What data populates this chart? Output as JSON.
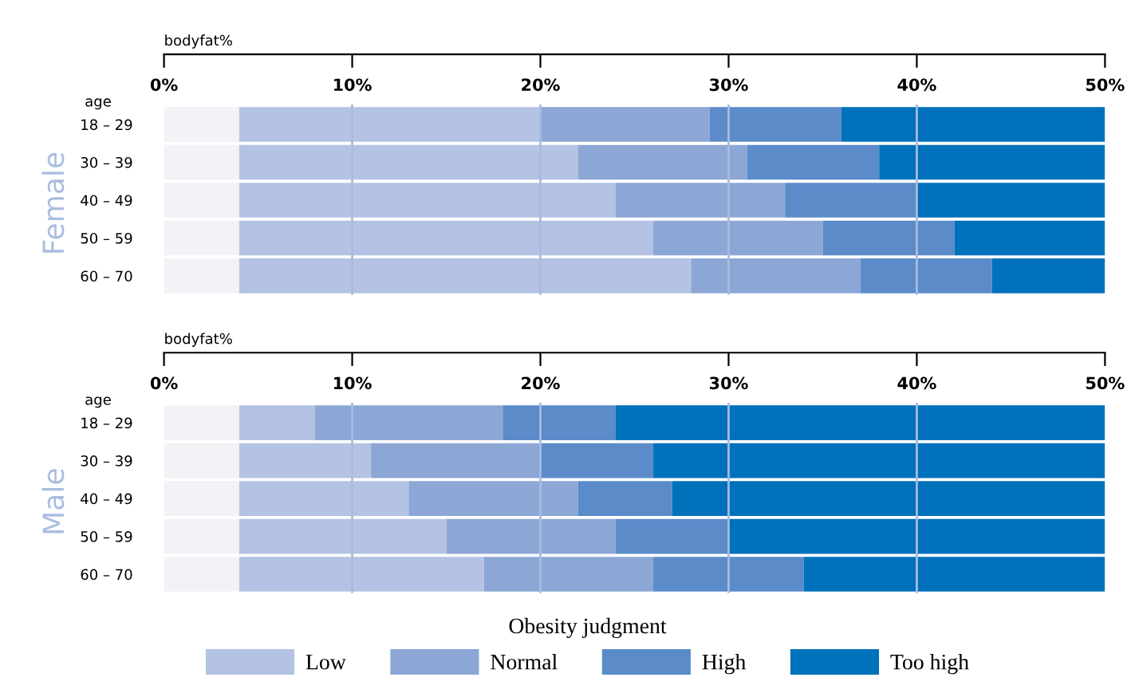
{
  "chart_data": [
    {
      "type": "bar",
      "orientation": "horizontal",
      "stacked": true,
      "xlabel": "bodyfat%",
      "ylabel": "Female",
      "annotations": [
        "age"
      ],
      "categories": [
        "18 – 29",
        "30 – 39",
        "40 – 49",
        "50 – 59",
        "60 – 70"
      ],
      "series": [
        {
          "color": "#f2f2f7",
          "values": [
            4,
            4,
            4,
            4,
            4
          ]
        },
        {
          "color": "#b4c3e3",
          "values": [
            16,
            18,
            20,
            22,
            24
          ]
        },
        {
          "color": "#8ca7d6",
          "values": [
            9,
            9,
            9,
            9,
            9
          ]
        },
        {
          "color": "#5b8bc9",
          "values": [
            7,
            7,
            7,
            7,
            7
          ]
        },
        {
          "color": "#0071bb",
          "values": [
            14,
            12,
            10,
            8,
            6
          ]
        }
      ],
      "xlim": [
        0,
        50
      ],
      "xticks": [
        {
          "value": 0,
          "label": "0%"
        },
        {
          "value": 10,
          "label": "10%"
        },
        {
          "value": 20,
          "label": "20%"
        },
        {
          "value": 30,
          "label": "30%"
        },
        {
          "value": 40,
          "label": "40%"
        },
        {
          "value": 50,
          "label": "50%"
        }
      ],
      "grid": "x"
    },
    {
      "type": "bar",
      "orientation": "horizontal",
      "stacked": true,
      "xlabel": "bodyfat%",
      "ylabel": "Male",
      "annotations": [
        "age"
      ],
      "categories": [
        "18 – 29",
        "30 – 39",
        "40 – 49",
        "50 – 59",
        "60 – 70"
      ],
      "series": [
        {
          "color": "#f2f2f7",
          "values": [
            4,
            4,
            4,
            4,
            4
          ]
        },
        {
          "name": "Low",
          "color": "#b4c3e3",
          "values": [
            4,
            7,
            9,
            11,
            13
          ]
        },
        {
          "name": "Normal",
          "color": "#8ca7d6",
          "values": [
            10,
            9,
            9,
            9,
            9
          ]
        },
        {
          "name": "High",
          "color": "#5b8bc9",
          "values": [
            6,
            6,
            5,
            6,
            8
          ]
        },
        {
          "name": "Too high",
          "color": "#0071bb",
          "values": [
            26,
            24,
            23,
            20,
            16
          ]
        }
      ],
      "xlim": [
        0,
        50
      ],
      "xticks": [
        {
          "value": 0,
          "label": "0%"
        },
        {
          "value": 10,
          "label": "10%"
        },
        {
          "value": 20,
          "label": "20%"
        },
        {
          "value": 30,
          "label": "30%"
        },
        {
          "value": 40,
          "label": "40%"
        },
        {
          "value": 50,
          "label": "50%"
        }
      ],
      "grid": "x",
      "legend": "bottom",
      "legend_title": "Obesity judgment"
    }
  ]
}
